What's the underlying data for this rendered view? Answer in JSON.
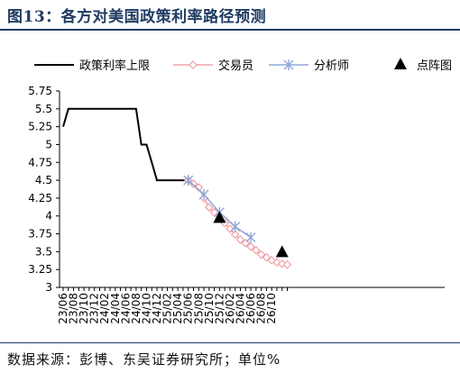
{
  "title": "图13：各方对美国政策利率路径预测",
  "source": "数据来源：彭博、东吴证券研究所；单位%",
  "chart_data": {
    "type": "line",
    "ylim": [
      3,
      5.75
    ],
    "y_ticks": [
      "5.75",
      "5.5",
      "5.25",
      "5",
      "4.75",
      "4.5",
      "4.25",
      "4",
      "3.75",
      "3.5",
      "3.25",
      "3"
    ],
    "x_ticks": [
      "23/06",
      "23/08",
      "23/10",
      "23/12",
      "24/02",
      "24/04",
      "24/06",
      "24/08",
      "24/10",
      "24/12",
      "25/02",
      "25/04",
      "25/06",
      "25/08",
      "25/10",
      "25/12",
      "26/02",
      "26/04",
      "26/06",
      "26/08",
      "26/10"
    ],
    "legend_placement": "top",
    "series": [
      {
        "name": "政策利率上限",
        "color": "#000000",
        "marker": "none",
        "points": [
          [
            "2023-06",
            5.25
          ],
          [
            "2023-07",
            5.5
          ],
          [
            "2023-08",
            5.5
          ],
          [
            "2023-09",
            5.5
          ],
          [
            "2023-10",
            5.5
          ],
          [
            "2023-11",
            5.5
          ],
          [
            "2023-12",
            5.5
          ],
          [
            "2024-01",
            5.5
          ],
          [
            "2024-02",
            5.5
          ],
          [
            "2024-03",
            5.5
          ],
          [
            "2024-04",
            5.5
          ],
          [
            "2024-05",
            5.5
          ],
          [
            "2024-06",
            5.5
          ],
          [
            "2024-07",
            5.5
          ],
          [
            "2024-08",
            5.5
          ],
          [
            "2024-09",
            5.0
          ],
          [
            "2024-10",
            5.0
          ],
          [
            "2024-11",
            4.75
          ],
          [
            "2024-12",
            4.5
          ],
          [
            "2025-01",
            4.5
          ],
          [
            "2025-02",
            4.5
          ],
          [
            "2025-03",
            4.5
          ],
          [
            "2025-04",
            4.5
          ],
          [
            "2025-05",
            4.5
          ],
          [
            "2025-06",
            4.5
          ]
        ]
      },
      {
        "name": "交易员",
        "color": "#f4a0a8",
        "marker": "diamond",
        "points": [
          [
            "2025-06",
            4.5
          ],
          [
            "2025-07",
            4.45
          ],
          [
            "2025-08",
            4.4
          ],
          [
            "2025-09",
            4.25
          ],
          [
            "2025-10",
            4.12
          ],
          [
            "2025-11",
            4.05
          ],
          [
            "2025-12",
            3.97
          ],
          [
            "2026-01",
            3.9
          ],
          [
            "2026-02",
            3.82
          ],
          [
            "2026-03",
            3.74
          ],
          [
            "2026-04",
            3.67
          ],
          [
            "2026-05",
            3.62
          ],
          [
            "2026-06",
            3.57
          ],
          [
            "2026-07",
            3.52
          ],
          [
            "2026-08",
            3.46
          ],
          [
            "2026-09",
            3.42
          ],
          [
            "2026-10",
            3.38
          ],
          [
            "2026-11",
            3.35
          ],
          [
            "2026-12",
            3.33
          ],
          [
            "2027-01",
            3.32
          ]
        ]
      },
      {
        "name": "分析师",
        "color": "#8fa8d8",
        "marker": "asterisk",
        "points": [
          [
            "2025-06",
            4.5
          ],
          [
            "2025-09",
            4.3
          ],
          [
            "2025-12",
            4.05
          ],
          [
            "2026-03",
            3.85
          ],
          [
            "2026-06",
            3.7
          ]
        ]
      },
      {
        "name": "点阵图",
        "color": "#000000",
        "marker": "triangle",
        "points": [
          [
            "2025-12",
            3.98
          ],
          [
            "2026-12",
            3.5
          ]
        ]
      }
    ]
  }
}
